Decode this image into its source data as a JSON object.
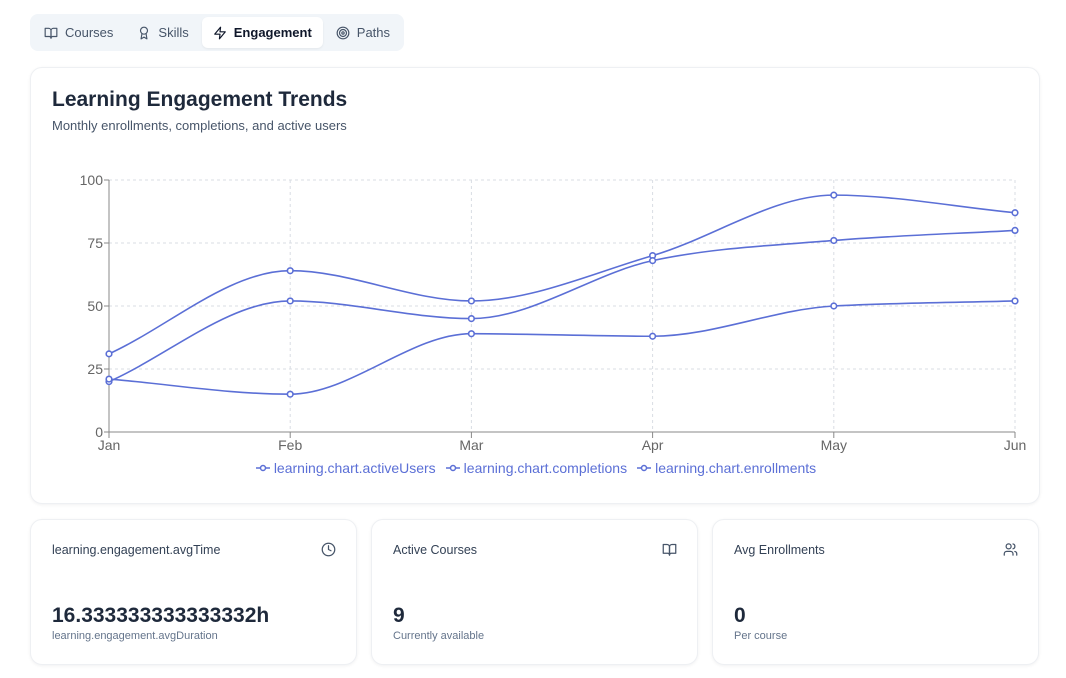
{
  "tabs": [
    {
      "label": "Courses",
      "icon": "book-open-icon",
      "active": false
    },
    {
      "label": "Skills",
      "icon": "award-icon",
      "active": false
    },
    {
      "label": "Engagement",
      "icon": "zap-icon",
      "active": true
    },
    {
      "label": "Paths",
      "icon": "target-icon",
      "active": false
    }
  ],
  "chart_card": {
    "title": "Learning Engagement Trends",
    "subtitle": "Monthly enrollments, completions, and active users"
  },
  "chart_data": {
    "type": "line",
    "categories": [
      "Jan",
      "Feb",
      "Mar",
      "Apr",
      "May",
      "Jun"
    ],
    "ylim": [
      0,
      100
    ],
    "yticks": [
      0,
      25,
      50,
      75,
      100
    ],
    "grid": true,
    "legend_position": "bottom",
    "line_color": "#5b6fd6",
    "series": [
      {
        "name": "learning.chart.activeUsers",
        "values": [
          31,
          64,
          52,
          70,
          94,
          87
        ]
      },
      {
        "name": "learning.chart.completions",
        "values": [
          20,
          52,
          45,
          68,
          76,
          80
        ]
      },
      {
        "name": "learning.chart.enrollments",
        "values": [
          21,
          15,
          39,
          38,
          50,
          52
        ]
      }
    ]
  },
  "stats": [
    {
      "label": "learning.engagement.avgTime",
      "icon": "clock-icon",
      "value": "16.333333333333332h",
      "note": "learning.engagement.avgDuration"
    },
    {
      "label": "Active Courses",
      "icon": "book-open-icon",
      "value": "9",
      "note": "Currently available"
    },
    {
      "label": "Avg Enrollments",
      "icon": "users-icon",
      "value": "0",
      "note": "Per course"
    }
  ]
}
